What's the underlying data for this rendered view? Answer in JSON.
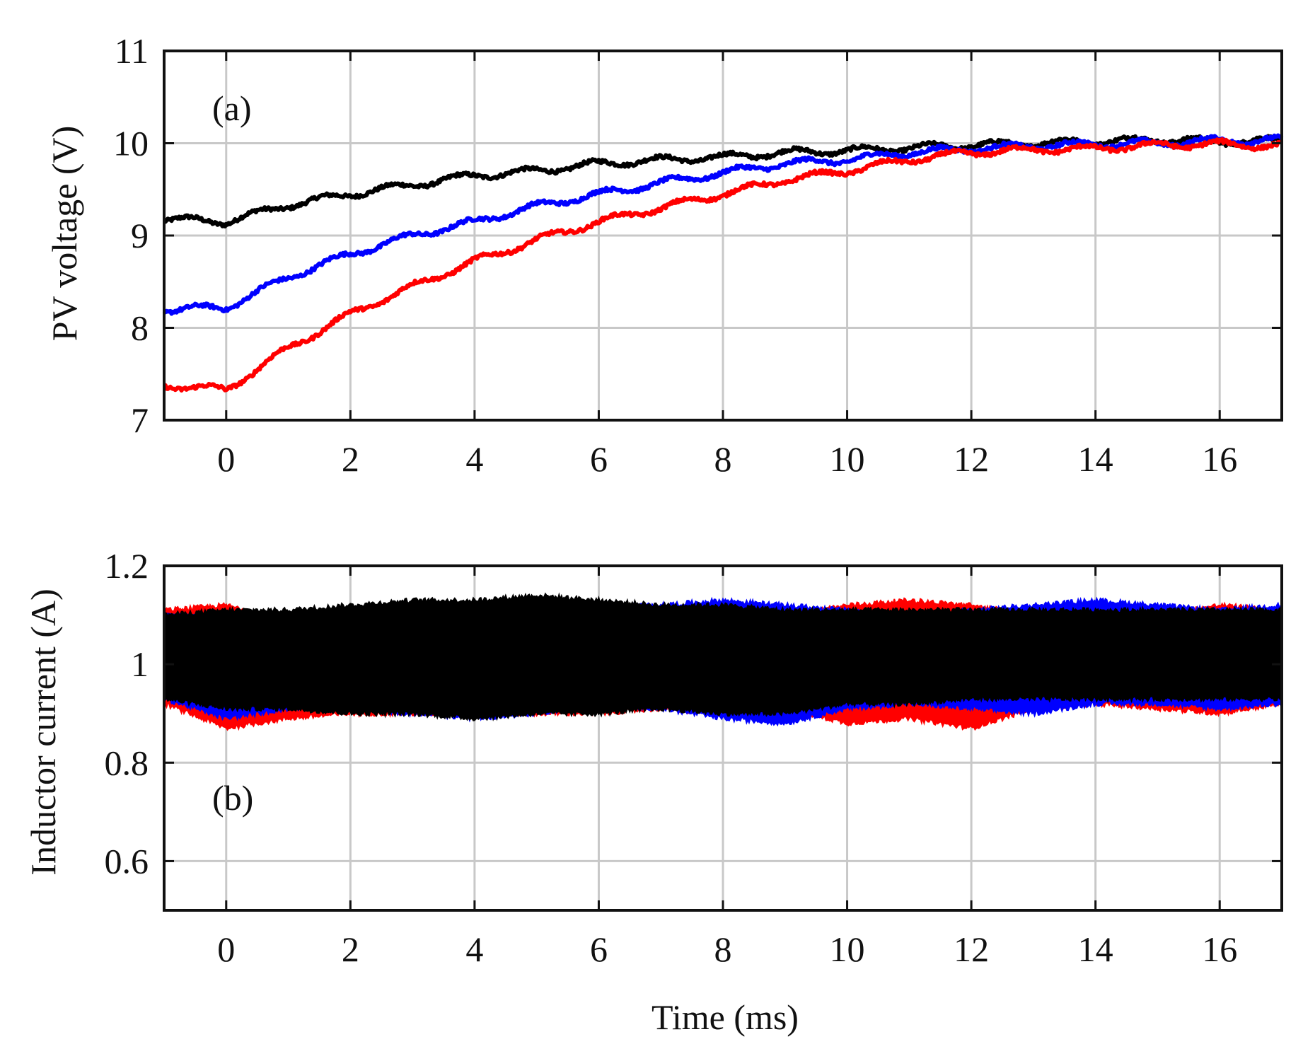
{
  "colors": {
    "red": "#ff0000",
    "blue": "#0000ff",
    "black": "#000000",
    "grid": "#c8c8c8"
  },
  "chart_data": [
    {
      "type": "line",
      "panel_label": "(a)",
      "title": "",
      "xlabel": "",
      "ylabel": "PV voltage (V)",
      "xlim": [
        -1,
        17
      ],
      "ylim": [
        7,
        11
      ],
      "xticks": [
        0,
        2,
        4,
        6,
        8,
        10,
        12,
        14,
        16
      ],
      "xtick_labels": [
        "0",
        "2",
        "4",
        "6",
        "8",
        "10",
        "12",
        "14",
        "16"
      ],
      "yticks": [
        7,
        8,
        9,
        10,
        11
      ],
      "ytick_labels": [
        "7",
        "8",
        "9",
        "10",
        "11"
      ],
      "grid": true,
      "x": [
        -1,
        0,
        1,
        2,
        3,
        4,
        5,
        6,
        7,
        8,
        9,
        10,
        11,
        12,
        13,
        14,
        15,
        16,
        17
      ],
      "series": [
        {
          "name": "black",
          "color": "#000000",
          "values": [
            9.18,
            9.15,
            9.33,
            9.45,
            9.55,
            9.65,
            9.7,
            9.78,
            9.82,
            9.85,
            9.9,
            9.92,
            9.95,
            9.98,
            10.0,
            10.02,
            10.04,
            10.02,
            10.03
          ]
        },
        {
          "name": "blue",
          "color": "#0000ff",
          "values": [
            8.2,
            8.22,
            8.55,
            8.8,
            9.0,
            9.15,
            9.32,
            9.45,
            9.57,
            9.68,
            9.78,
            9.82,
            9.9,
            9.94,
            9.97,
            9.99,
            10.0,
            10.03,
            10.03
          ]
        },
        {
          "name": "red",
          "color": "#ff0000",
          "values": [
            7.38,
            7.33,
            7.78,
            8.15,
            8.45,
            8.72,
            8.95,
            9.15,
            9.3,
            9.45,
            9.6,
            9.7,
            9.82,
            9.9,
            9.93,
            9.94,
            9.98,
            9.99,
            9.97
          ]
        }
      ]
    },
    {
      "type": "line",
      "panel_label": "(b)",
      "title": "",
      "xlabel": "Time (ms)",
      "ylabel": "Inductor current (A)",
      "xlim": [
        -1,
        17
      ],
      "ylim": [
        0.5,
        1.2
      ],
      "xticks": [
        0,
        2,
        4,
        6,
        8,
        10,
        12,
        14,
        16
      ],
      "xtick_labels": [
        "0",
        "2",
        "4",
        "6",
        "8",
        "10",
        "12",
        "14",
        "16"
      ],
      "yticks": [
        0.6,
        0.8,
        1,
        1.2
      ],
      "ytick_labels": [
        "0.6",
        "0.8",
        "1",
        "1.2"
      ],
      "grid": true,
      "x": [
        -1,
        0,
        1,
        2,
        3,
        4,
        5,
        6,
        7,
        8,
        9,
        10,
        11,
        12,
        13,
        14,
        15,
        16,
        17
      ],
      "series": [
        {
          "name": "red",
          "color": "#ff0000",
          "center": 1.01,
          "upper": [
            1.11,
            1.12,
            1.09,
            1.1,
            1.11,
            1.1,
            1.1,
            1.11,
            1.1,
            1.1,
            1.1,
            1.12,
            1.13,
            1.12,
            1.1,
            1.11,
            1.1,
            1.12,
            1.11
          ],
          "lower": [
            0.92,
            0.87,
            0.89,
            0.9,
            0.9,
            0.9,
            0.9,
            0.9,
            0.91,
            0.9,
            0.91,
            0.88,
            0.89,
            0.87,
            0.91,
            0.92,
            0.91,
            0.9,
            0.92
          ]
        },
        {
          "name": "blue",
          "color": "#0000ff",
          "center": 1.01,
          "upper": [
            1.1,
            1.1,
            1.09,
            1.1,
            1.11,
            1.12,
            1.11,
            1.12,
            1.12,
            1.13,
            1.12,
            1.11,
            1.1,
            1.11,
            1.12,
            1.13,
            1.12,
            1.11,
            1.12
          ],
          "lower": [
            0.93,
            0.89,
            0.91,
            0.91,
            0.9,
            0.89,
            0.9,
            0.92,
            0.91,
            0.89,
            0.88,
            0.91,
            0.92,
            0.91,
            0.9,
            0.92,
            0.92,
            0.91,
            0.92
          ]
        },
        {
          "name": "black",
          "color": "#000000",
          "center": 1.01,
          "upper": [
            1.1,
            1.11,
            1.11,
            1.12,
            1.13,
            1.13,
            1.14,
            1.13,
            1.12,
            1.12,
            1.11,
            1.11,
            1.11,
            1.11,
            1.11,
            1.11,
            1.11,
            1.11,
            1.11
          ],
          "lower": [
            0.93,
            0.91,
            0.91,
            0.9,
            0.9,
            0.89,
            0.9,
            0.9,
            0.91,
            0.9,
            0.9,
            0.92,
            0.92,
            0.93,
            0.93,
            0.93,
            0.93,
            0.93,
            0.93
          ]
        }
      ]
    }
  ]
}
